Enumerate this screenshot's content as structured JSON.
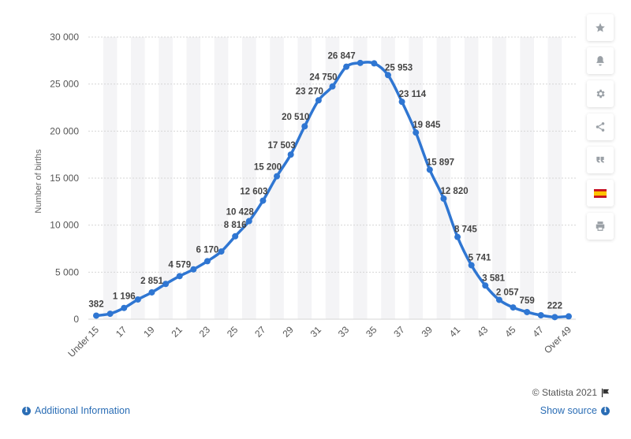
{
  "chart_data": {
    "type": "line",
    "categories": [
      "Under 15",
      "16",
      "17",
      "18",
      "19",
      "20",
      "21",
      "22",
      "23",
      "24",
      "25",
      "26",
      "27",
      "28",
      "29",
      "30",
      "31",
      "32",
      "33",
      "34",
      "35",
      "36",
      "37",
      "38",
      "39",
      "40",
      "41",
      "42",
      "43",
      "44",
      "45",
      "46",
      "47",
      "48",
      "Over 49"
    ],
    "series": [
      {
        "values": [
          382,
          580,
          1196,
          2100,
          2851,
          3750,
          4579,
          5300,
          6170,
          7200,
          8816,
          10428,
          12603,
          15200,
          17503,
          20510,
          23270,
          24750,
          26847,
          27250,
          27200,
          25953,
          23114,
          19845,
          15897,
          12820,
          8745,
          5741,
          3581,
          2057,
          1250,
          759,
          420,
          222,
          300
        ]
      }
    ],
    "data_labels": [
      {
        "index": 0,
        "text": "382"
      },
      {
        "index": 2,
        "text": "1 196"
      },
      {
        "index": 4,
        "text": "2 851"
      },
      {
        "index": 6,
        "text": "4 579"
      },
      {
        "index": 8,
        "text": "6 170"
      },
      {
        "index": 10,
        "text": "8 816"
      },
      {
        "index": 11,
        "text": "10 428"
      },
      {
        "index": 12,
        "text": "12 603"
      },
      {
        "index": 13,
        "text": "15 200"
      },
      {
        "index": 14,
        "text": "17 503"
      },
      {
        "index": 15,
        "text": "20 510"
      },
      {
        "index": 16,
        "text": "23 270"
      },
      {
        "index": 17,
        "text": "24 750"
      },
      {
        "index": 18,
        "text": "26 847"
      },
      {
        "index": 21,
        "text": "25 953"
      },
      {
        "index": 22,
        "text": "23 114"
      },
      {
        "index": 23,
        "text": "19 845"
      },
      {
        "index": 24,
        "text": "15 897"
      },
      {
        "index": 25,
        "text": "12 820"
      },
      {
        "index": 26,
        "text": "8 745"
      },
      {
        "index": 27,
        "text": "5 741"
      },
      {
        "index": 28,
        "text": "3 581"
      },
      {
        "index": 29,
        "text": "2 057"
      },
      {
        "index": 31,
        "text": "759"
      },
      {
        "index": 33,
        "text": "222"
      }
    ],
    "x_tick_labels": [
      "Under 15",
      "17",
      "19",
      "21",
      "23",
      "25",
      "27",
      "29",
      "31",
      "33",
      "35",
      "37",
      "39",
      "41",
      "43",
      "45",
      "47",
      "Over 49"
    ],
    "y_ticks": [
      0,
      5000,
      10000,
      15000,
      20000,
      25000,
      30000
    ],
    "y_tick_labels": [
      "0",
      "5 000",
      "10 000",
      "15 000",
      "20 000",
      "25 000",
      "30 000"
    ],
    "ylabel": "Number of births",
    "xlabel": "",
    "ylim": [
      0,
      30000
    ],
    "grid": true,
    "alternating_column_bands": true,
    "line_color": "#2f76d2",
    "band_color": "#f4f4f6",
    "grid_color": "#d6d6d6"
  },
  "toolbar": [
    {
      "name": "star-icon"
    },
    {
      "name": "bell-icon"
    },
    {
      "name": "gear-icon"
    },
    {
      "name": "share-icon"
    },
    {
      "name": "quote-icon"
    },
    {
      "name": "spain-flag-icon"
    },
    {
      "name": "print-icon"
    }
  ],
  "footer": {
    "copyright": "© Statista 2021",
    "additional_info": "Additional Information",
    "show_source": "Show source"
  },
  "colors": {
    "link": "#2a6db5",
    "icon": "#9aa0a6"
  }
}
